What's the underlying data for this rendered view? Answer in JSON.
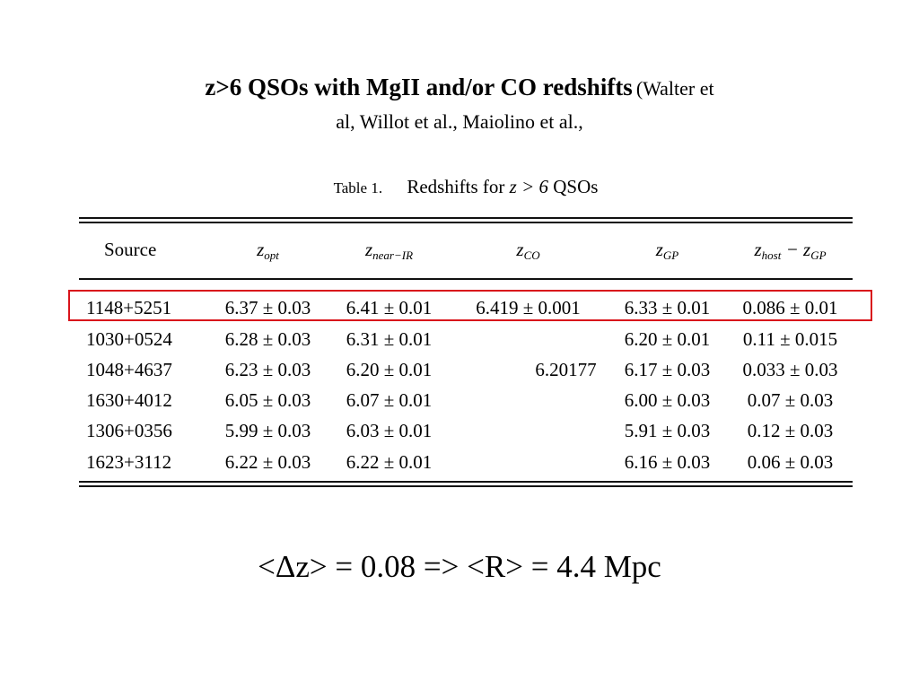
{
  "title": {
    "bold": "z>6 QSOs with MgII and/or CO redshifts",
    "refs_line1": "(Walter et",
    "refs_line2": "al, Willot et al., Maiolino et al.,"
  },
  "table": {
    "caption_prefix": "Table 1.",
    "caption_main": "Redshifts for",
    "caption_math": "z > 6",
    "caption_tail": "QSOs",
    "headers": {
      "source": "Source",
      "opt": {
        "main": "z",
        "sub": "opt"
      },
      "nir": {
        "main": "z",
        "sub": "near−IR"
      },
      "co": {
        "main": "z",
        "sub": "CO"
      },
      "gp": {
        "main": "z",
        "sub": "GP"
      },
      "diff": {
        "main1": "z",
        "sub1": "host",
        "minus": " − ",
        "main2": "z",
        "sub2": "GP"
      }
    },
    "rows": [
      {
        "source": "1148+5251",
        "opt": "6.37 ± 0.03",
        "nir": "6.41 ± 0.01",
        "co": "6.419 ± 0.001",
        "gp": "6.33 ± 0.01",
        "diff": "0.086 ± 0.01"
      },
      {
        "source": "1030+0524",
        "opt": "6.28 ± 0.03",
        "nir": "6.31 ± 0.01",
        "co": "",
        "gp": "6.20 ± 0.01",
        "diff": "0.11 ± 0.015"
      },
      {
        "source": "1048+4637",
        "opt": "6.23 ± 0.03",
        "nir": "6.20 ± 0.01",
        "co": "",
        "gp": "6.17 ± 0.03",
        "diff": "0.033 ± 0.03"
      },
      {
        "source": "1630+4012",
        "opt": "6.05 ± 0.03",
        "nir": "6.07 ± 0.01",
        "co": "",
        "gp": "6.00 ± 0.03",
        "diff": "0.07 ± 0.03"
      },
      {
        "source": "1306+0356",
        "opt": "5.99 ± 0.03",
        "nir": "6.03 ± 0.01",
        "co": "",
        "gp": "5.91 ± 0.03",
        "diff": "0.12 ± 0.03"
      },
      {
        "source": "1623+3112",
        "opt": "6.22 ± 0.03",
        "nir": "6.22 ± 0.01",
        "co": "",
        "gp": "6.16 ± 0.03",
        "diff": "0.06 ± 0.03"
      }
    ],
    "co_merged_value": "6.20177",
    "highlight_color": "#d9141b"
  },
  "footer": {
    "equation": "<Δz> = 0.08 => <R> = 4.4 Mpc"
  }
}
